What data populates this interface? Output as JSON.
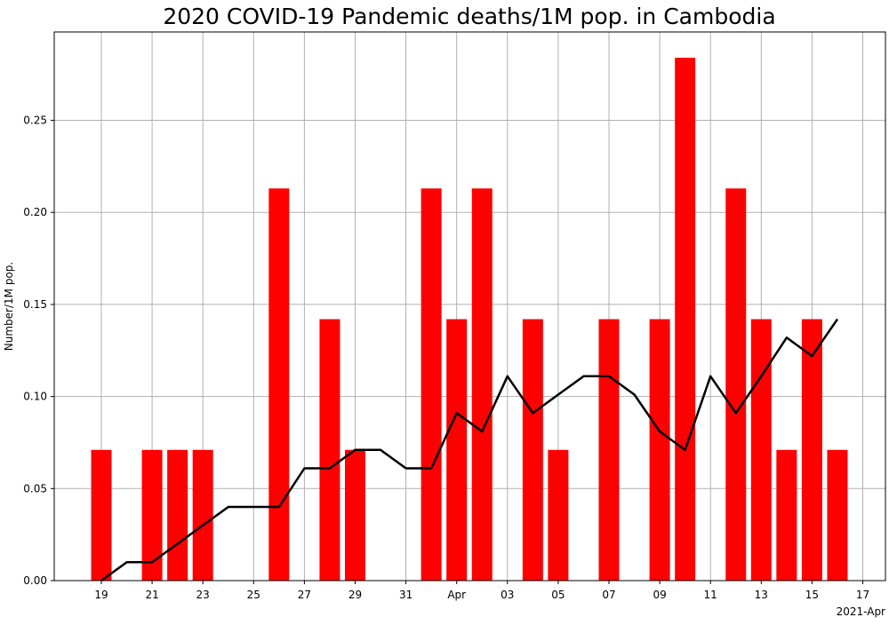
{
  "chart_data": {
    "type": "bar",
    "title": "2020 COVID-19 Pandemic deaths/1M pop. in Cambodia",
    "xlabel": "",
    "ylabel": "Number/1M pop.",
    "x_corner_label": "2021-Apr",
    "dates": [
      "Mar 19",
      "Mar 20",
      "Mar 21",
      "Mar 22",
      "Mar 23",
      "Mar 24",
      "Mar 25",
      "Mar 26",
      "Mar 27",
      "Mar 28",
      "Mar 29",
      "Mar 30",
      "Mar 31",
      "Apr 01",
      "Apr 02",
      "Apr 03",
      "Apr 04",
      "Apr 05",
      "Apr 06",
      "Apr 07",
      "Apr 08",
      "Apr 09",
      "Apr 10",
      "Apr 11",
      "Apr 12",
      "Apr 13",
      "Apr 14",
      "Apr 15",
      "Apr 16",
      "Apr 17"
    ],
    "series": [
      {
        "type": "bar",
        "color": "#ff0000",
        "values": [
          0.071,
          0,
          0.071,
          0.071,
          0.071,
          0,
          0,
          0.213,
          0,
          0.142,
          0.071,
          0,
          0,
          0.213,
          0.142,
          0.213,
          0,
          0.142,
          0.071,
          0,
          0.142,
          0,
          0.142,
          0.284,
          0,
          0.213,
          0.142,
          0.071,
          0.142,
          0.071
        ]
      },
      {
        "type": "line",
        "color": "#000000",
        "values": [
          0,
          0.01,
          0.01,
          0.02,
          0.03,
          0.04,
          0.04,
          0.04,
          0.061,
          0.061,
          0.071,
          0.071,
          0.061,
          0.061,
          0.091,
          0.081,
          0.111,
          0.091,
          0.101,
          0.111,
          0.111,
          0.101,
          0.081,
          0.071,
          0.111,
          0.091,
          0.111,
          0.132,
          0.122,
          0.142
        ]
      }
    ],
    "xticks": [
      "19",
      "21",
      "23",
      "25",
      "27",
      "29",
      "31",
      "Apr",
      "03",
      "05",
      "07",
      "09",
      "11",
      "13",
      "15",
      "17"
    ],
    "yticks": [
      "0.00",
      "0.05",
      "0.10",
      "0.15",
      "0.20",
      "0.25"
    ],
    "ylim": [
      0,
      0.298
    ],
    "grid": true
  }
}
